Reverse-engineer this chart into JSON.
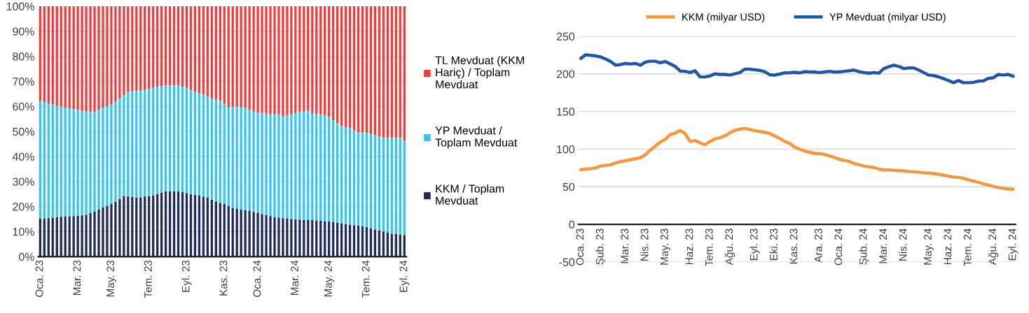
{
  "chart_data": [
    {
      "type": "bar",
      "stacked": true,
      "grid": "y",
      "legend": "right",
      "categories": [
        "Oca. 23",
        null,
        null,
        null,
        null,
        null,
        null,
        null,
        null,
        "Mar. 23",
        null,
        null,
        null,
        null,
        null,
        null,
        null,
        "May. 23",
        null,
        null,
        null,
        null,
        null,
        null,
        null,
        null,
        "Tem. 23",
        null,
        null,
        null,
        null,
        null,
        null,
        null,
        null,
        "Eyl. 23",
        null,
        null,
        null,
        null,
        null,
        null,
        null,
        null,
        "Kas. 23",
        null,
        null,
        null,
        null,
        null,
        null,
        null,
        "Oca. 24",
        null,
        null,
        null,
        null,
        null,
        null,
        null,
        null,
        "Mar. 24",
        null,
        null,
        null,
        null,
        null,
        null,
        null,
        "May. 24",
        null,
        null,
        null,
        null,
        null,
        null,
        null,
        null,
        "Tem. 24",
        null,
        null,
        null,
        null,
        null,
        null,
        null,
        null,
        "Eyl. 24"
      ],
      "ylim": [
        0,
        100
      ],
      "yticks": [
        {
          "value": 0,
          "label": "0%"
        },
        {
          "value": 10,
          "label": "10%"
        },
        {
          "value": 20,
          "label": "20%"
        },
        {
          "value": 30,
          "label": "30%"
        },
        {
          "value": 40,
          "label": "40%"
        },
        {
          "value": 50,
          "label": "50%"
        },
        {
          "value": 60,
          "label": "60%"
        },
        {
          "value": 70,
          "label": "70%"
        },
        {
          "value": 80,
          "label": "80%"
        },
        {
          "value": 90,
          "label": "90%"
        },
        {
          "value": 100,
          "label": "100%"
        }
      ],
      "series": [
        {
          "name": "KKM / Toplam Mevduat",
          "color": "#1f2a5c",
          "values": [
            15.3,
            15.2,
            15.4,
            15.6,
            15.8,
            15.9,
            16.0,
            16.1,
            16.2,
            16.3,
            16.5,
            16.8,
            17.4,
            18.0,
            18.8,
            19.6,
            20.3,
            21.0,
            22.0,
            23.0,
            24.2,
            24.0,
            23.8,
            23.6,
            23.7,
            24.0,
            24.2,
            24.5,
            25.0,
            25.6,
            26.1,
            26.2,
            26.1,
            26.1,
            25.8,
            25.4,
            25.0,
            24.7,
            24.5,
            24.0,
            23.7,
            22.8,
            22.0,
            21.5,
            21.0,
            20.2,
            19.5,
            19.2,
            18.8,
            18.6,
            18.4,
            17.9,
            17.4,
            17.0,
            16.6,
            16.2,
            15.8,
            15.6,
            15.4,
            15.3,
            15.1,
            14.9,
            14.8,
            14.7,
            14.6,
            14.6,
            14.5,
            14.4,
            14.2,
            14.1,
            13.8,
            13.5,
            13.2,
            13.0,
            12.8,
            12.6,
            12.4,
            12.1,
            11.9,
            11.4,
            10.9,
            10.5,
            10.1,
            9.7,
            9.2,
            9.0,
            8.9,
            8.7
          ]
        },
        {
          "name": "YP Mevduat / Toplam Mevduat",
          "color": "#33c5f3",
          "values": [
            46.8,
            46.4,
            45.8,
            45.2,
            44.6,
            44.1,
            43.5,
            43.1,
            42.7,
            42.3,
            41.7,
            41.1,
            40.4,
            39.7,
            39.8,
            39.9,
            39.8,
            39.7,
            40.0,
            40.2,
            40.3,
            41.8,
            42.2,
            42.6,
            42.6,
            42.6,
            42.8,
            42.9,
            42.9,
            42.5,
            42.3,
            42.2,
            42.3,
            42.3,
            42.1,
            42.0,
            41.6,
            41.1,
            40.8,
            40.7,
            40.2,
            40.4,
            40.8,
            40.9,
            40.0,
            39.6,
            40.4,
            40.8,
            41.0,
            40.9,
            40.3,
            40.0,
            40.2,
            40.4,
            40.5,
            40.6,
            41.0,
            41.2,
            40.7,
            41.1,
            41.7,
            42.5,
            43.1,
            43.4,
            43.8,
            42.5,
            42.4,
            42.4,
            42.1,
            41.7,
            40.7,
            39.8,
            38.9,
            38.7,
            38.6,
            37.9,
            37.3,
            37.5,
            37.6,
            37.6,
            37.7,
            37.6,
            37.5,
            37.8,
            38.2,
            38.5,
            38.7,
            37.6
          ]
        },
        {
          "name": "TL Mevduat (KKM Hariç) / Toplam Mevduat",
          "color": "#f23c3c",
          "values": [
            37.9,
            38.4,
            38.8,
            39.2,
            39.6,
            40.0,
            40.5,
            40.8,
            41.1,
            41.4,
            41.8,
            42.1,
            42.2,
            42.3,
            41.4,
            40.5,
            39.9,
            39.3,
            38.0,
            36.8,
            35.5,
            34.2,
            34.0,
            33.8,
            33.7,
            33.4,
            33.0,
            32.6,
            32.1,
            31.9,
            31.6,
            31.6,
            31.6,
            31.6,
            32.1,
            32.6,
            33.4,
            34.2,
            34.7,
            35.3,
            36.1,
            36.8,
            37.2,
            37.6,
            39.0,
            40.2,
            40.1,
            40.0,
            40.2,
            40.5,
            41.3,
            42.1,
            42.4,
            42.6,
            42.9,
            43.2,
            43.2,
            43.2,
            43.9,
            43.6,
            43.2,
            42.6,
            42.1,
            41.9,
            41.6,
            42.9,
            43.1,
            43.2,
            43.7,
            44.2,
            45.5,
            46.7,
            47.9,
            48.3,
            48.6,
            49.5,
            50.3,
            50.4,
            50.5,
            51.0,
            51.4,
            51.9,
            52.4,
            52.5,
            52.6,
            52.5,
            52.4,
            53.7
          ]
        }
      ]
    },
    {
      "type": "line",
      "grid": "y",
      "legend": "top",
      "categories": [
        "Oca. 23",
        null,
        null,
        null,
        "Şub. 23",
        null,
        null,
        null,
        null,
        "Mar. 23",
        null,
        null,
        null,
        "Nis. 23",
        null,
        null,
        null,
        "May. 23",
        null,
        null,
        null,
        null,
        "Haz. 23",
        null,
        null,
        null,
        "Tem. 23",
        null,
        null,
        null,
        "Ağu. 23",
        null,
        null,
        null,
        null,
        "Eyl. 23",
        null,
        null,
        null,
        "Eki. 23",
        null,
        null,
        null,
        "Kas. 23",
        null,
        null,
        null,
        null,
        "Ara. 23",
        null,
        null,
        null,
        "Oca. 24",
        null,
        null,
        null,
        null,
        "Şub. 24",
        null,
        null,
        null,
        "Mar. 24",
        null,
        null,
        null,
        "Nis. 24",
        null,
        null,
        null,
        null,
        "May. 24",
        null,
        null,
        null,
        "Haz. 24",
        null,
        null,
        null,
        "Tem. 24",
        null,
        null,
        null,
        null,
        "Ağu. 24",
        null,
        null,
        null,
        "Eyl. 24"
      ],
      "ylim": [
        -50,
        250
      ],
      "yticks": [
        -50,
        0,
        50,
        100,
        150,
        200,
        250
      ],
      "series": [
        {
          "name": "KKM (milyar USD)",
          "color": "#f5973c",
          "values": [
            72.7,
            73.5,
            73.9,
            75.2,
            77.6,
            78.4,
            79.2,
            81.7,
            83.3,
            84.6,
            85.8,
            87.4,
            88.6,
            92.7,
            98.9,
            104.2,
            109.5,
            112.7,
            119.3,
            121.3,
            125,
            120.5,
            110.3,
            111.5,
            108.3,
            105.8,
            110.3,
            113.6,
            115.2,
            117.6,
            121.7,
            125,
            126.6,
            127.5,
            126.2,
            124.6,
            123.4,
            122.5,
            120.9,
            117.6,
            114.4,
            110.3,
            107.8,
            102.9,
            100.1,
            97.6,
            96,
            94.4,
            94,
            93.1,
            91.1,
            89.1,
            86.6,
            85,
            83.7,
            80.9,
            79.2,
            77.6,
            76.4,
            75.6,
            73.5,
            72.3,
            72.3,
            71.9,
            71.5,
            71.1,
            70.3,
            69.9,
            69.4,
            68.6,
            68.2,
            67.4,
            66.6,
            65.4,
            64.1,
            62.9,
            62.5,
            61.3,
            59.2,
            57.6,
            56,
            53.9,
            52.3,
            50.7,
            49,
            47.8,
            47,
            46.6
          ]
        },
        {
          "name": "YP Mevduat (milyar USD)",
          "color": "#1f56a5",
          "values": [
            220.6,
            225.5,
            224.7,
            223.9,
            222.6,
            219.8,
            216.5,
            211.6,
            212.4,
            214,
            213.2,
            214,
            211.6,
            215.7,
            216.9,
            216.9,
            214.9,
            216.5,
            213.2,
            210,
            203.8,
            203.4,
            201.8,
            204.2,
            196,
            196,
            197.3,
            200.2,
            199.3,
            199.3,
            198.5,
            200.2,
            201.8,
            206.3,
            206.3,
            205.5,
            204.7,
            203,
            198.9,
            198.5,
            199.8,
            201.4,
            201.4,
            202.2,
            201.4,
            203,
            202.6,
            202.6,
            201.8,
            202.6,
            203.4,
            202.6,
            202.6,
            203.4,
            204.2,
            205.1,
            203,
            201.8,
            201,
            201.8,
            201,
            207.1,
            209.6,
            211.6,
            210,
            207.1,
            207.9,
            207.9,
            205.1,
            201.8,
            198.5,
            197.7,
            196.1,
            193.6,
            191.2,
            188.3,
            191.2,
            188.3,
            188.3,
            188.7,
            190.4,
            190.8,
            194,
            194.9,
            199.3,
            198.5,
            199.3,
            196.9
          ]
        }
      ]
    }
  ]
}
